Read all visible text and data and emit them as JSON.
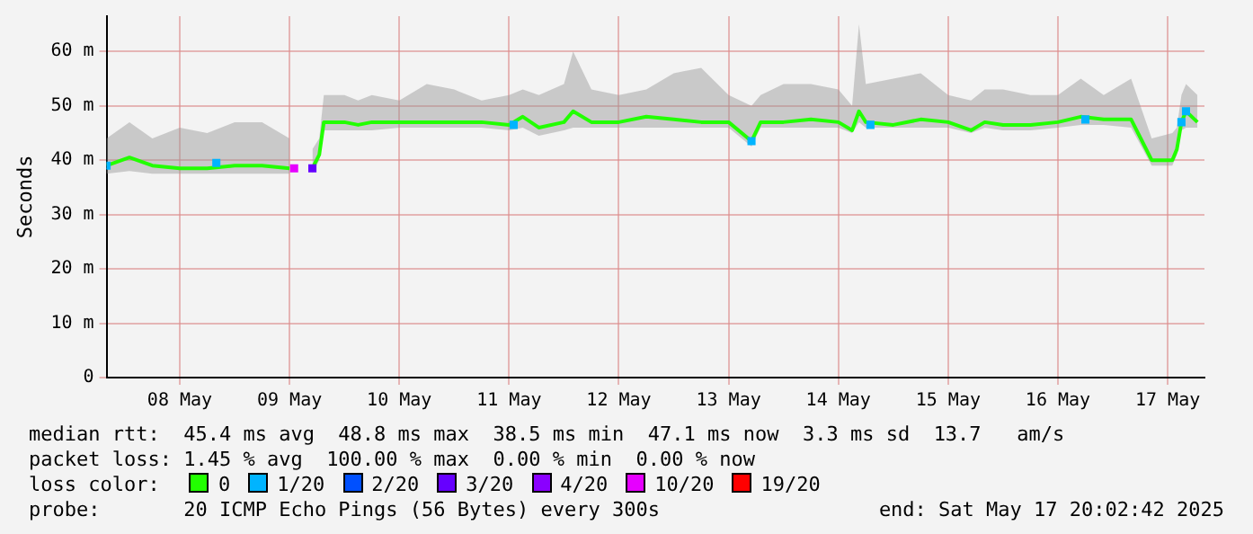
{
  "chart_data": {
    "type": "line",
    "ylabel": "Seconds",
    "legend_title": "loss color:",
    "legend": "bottom",
    "grid": true,
    "xlim": [
      "2025-05-07T20:00",
      "2025-05-17T20:02"
    ],
    "xticks": [
      {
        "value": "2025-05-08T12:00",
        "label": "08 May"
      },
      {
        "value": "2025-05-09T12:00",
        "label": "09 May"
      },
      {
        "value": "2025-05-10T12:00",
        "label": "10 May"
      },
      {
        "value": "2025-05-11T12:00",
        "label": "11 May"
      },
      {
        "value": "2025-05-12T12:00",
        "label": "12 May"
      },
      {
        "value": "2025-05-13T12:00",
        "label": "13 May"
      },
      {
        "value": "2025-05-14T12:00",
        "label": "14 May"
      },
      {
        "value": "2025-05-15T12:00",
        "label": "15 May"
      },
      {
        "value": "2025-05-16T12:00",
        "label": "16 May"
      },
      {
        "value": "2025-05-17T12:00",
        "label": "17 May"
      }
    ],
    "ylim": [
      0,
      66.5
    ],
    "yticks": [
      0,
      {
        "value": 10,
        "label": "10 m"
      },
      {
        "value": 20,
        "label": "20 m"
      },
      {
        "value": 30,
        "label": "30 m"
      },
      {
        "value": 40,
        "label": "40 m"
      },
      {
        "value": 50,
        "label": "50 m"
      },
      {
        "value": 60,
        "label": "60 m"
      }
    ],
    "series": [
      {
        "name": "0",
        "color": "#22ff00",
        "x": [
          "2025-05-07T20:00",
          "2025-05-08T01:00",
          "2025-05-08T06:00",
          "2025-05-08T12:00",
          "2025-05-08T18:00",
          "2025-05-09T00:00",
          "2025-05-09T06:00",
          "2025-05-09T12:00",
          "2025-05-09T15:00",
          "2025-05-09T17:00",
          "2025-05-09T18:30",
          "2025-05-09T19:30",
          "2025-05-10T00:00",
          "2025-05-10T03:00",
          "2025-05-10T06:00",
          "2025-05-10T12:00",
          "2025-05-10T18:00",
          "2025-05-11T00:00",
          "2025-05-11T06:00",
          "2025-05-11T12:00",
          "2025-05-11T15:00",
          "2025-05-11T18:30",
          "2025-05-12T00:00",
          "2025-05-12T02:00",
          "2025-05-12T06:00",
          "2025-05-12T12:00",
          "2025-05-12T18:00",
          "2025-05-13T00:00",
          "2025-05-13T06:00",
          "2025-05-13T12:00",
          "2025-05-13T17:00",
          "2025-05-13T19:00",
          "2025-05-14T00:00",
          "2025-05-14T06:00",
          "2025-05-14T12:00",
          "2025-05-14T15:00",
          "2025-05-14T16:30",
          "2025-05-14T18:00",
          "2025-05-15T00:00",
          "2025-05-15T06:00",
          "2025-05-15T12:00",
          "2025-05-15T17:00",
          "2025-05-15T20:00",
          "2025-05-16T00:00",
          "2025-05-16T06:00",
          "2025-05-16T12:00",
          "2025-05-16T17:00",
          "2025-05-16T22:00",
          "2025-05-17T04:00",
          "2025-05-17T08:30",
          "2025-05-17T13:00",
          "2025-05-17T14:00",
          "2025-05-17T15:00",
          "2025-05-17T16:00",
          "2025-05-17T18:30"
        ],
        "values": [
          39,
          40.5,
          39,
          38.5,
          38.5,
          39,
          39,
          38.5,
          null,
          38.5,
          41,
          47,
          47,
          46.5,
          47,
          47,
          47,
          47,
          47,
          46.5,
          48,
          46,
          47,
          49,
          47,
          47,
          48,
          47.5,
          47,
          47,
          43.5,
          47,
          47,
          47.5,
          47,
          45.5,
          49,
          47,
          46.5,
          47.5,
          47,
          45.5,
          47,
          46.5,
          46.5,
          47,
          48,
          47.5,
          47.5,
          40,
          40,
          42,
          47,
          49,
          47
        ],
        "lower": [
          37.5,
          38,
          37.5,
          37.5,
          37.5,
          37.5,
          37.5,
          37.5,
          null,
          37.5,
          40,
          45.5,
          45.5,
          45.5,
          45.5,
          46,
          46,
          46,
          46,
          45.5,
          46,
          44.5,
          45.5,
          46,
          46,
          46,
          46,
          46,
          46,
          46,
          42.5,
          46,
          46,
          46,
          46,
          45,
          47,
          46,
          46,
          46,
          46,
          45,
          46,
          45.5,
          45.5,
          46,
          46.5,
          46.5,
          46,
          39,
          39,
          41,
          45.5,
          46,
          46
        ],
        "upper": [
          44,
          47,
          44,
          46,
          45,
          47,
          47,
          44,
          null,
          42,
          44,
          52,
          52,
          51,
          52,
          51,
          54,
          53,
          51,
          52,
          53,
          52,
          54,
          60,
          53,
          52,
          53,
          56,
          57,
          52,
          50,
          52,
          54,
          54,
          53,
          50,
          65,
          54,
          55,
          56,
          52,
          51,
          53,
          53,
          52,
          52,
          55,
          52,
          55,
          44,
          45,
          46,
          52,
          54,
          52
        ]
      },
      {
        "name": "1/20",
        "type": "scatter",
        "marker": "square",
        "color": "#00b4ff",
        "x": [
          "2025-05-07T20:00",
          "2025-05-08T20:00",
          "2025-05-11T13:00",
          "2025-05-13T17:00",
          "2025-05-14T19:00",
          "2025-05-16T18:00",
          "2025-05-17T15:00",
          "2025-05-17T16:00"
        ],
        "values": [
          39,
          39.5,
          46.5,
          43.5,
          46.5,
          47.5,
          47,
          49
        ]
      },
      {
        "name": "2/20",
        "type": "scatter",
        "marker": "square",
        "color": "#0050ff"
      },
      {
        "name": "3/20",
        "type": "scatter",
        "marker": "square",
        "color": "#6600ff",
        "x": [
          "2025-05-09T17:00"
        ],
        "values": [
          38.5
        ]
      },
      {
        "name": "4/20",
        "type": "scatter",
        "marker": "square",
        "color": "#8a00ff"
      },
      {
        "name": "10/20",
        "type": "scatter",
        "marker": "square",
        "color": "#e600ff",
        "x": [
          "2025-05-09T13:00"
        ],
        "values": [
          38.5
        ]
      },
      {
        "name": "19/20",
        "type": "scatter",
        "marker": "square",
        "color": "#ff0000"
      }
    ],
    "annotations": [
      "median rtt:  45.4 ms avg  48.8 ms max  38.5 ms min  47.1 ms now  3.3 ms sd  13.7   am/s",
      "packet loss: 1.45 % avg  100.00 % max  0.00 % min  0.00 % now",
      "probe:       20 ICMP Echo Pings (56 Bytes) every 300s",
      "end: Sat May 17 20:02:42 2025"
    ]
  }
}
